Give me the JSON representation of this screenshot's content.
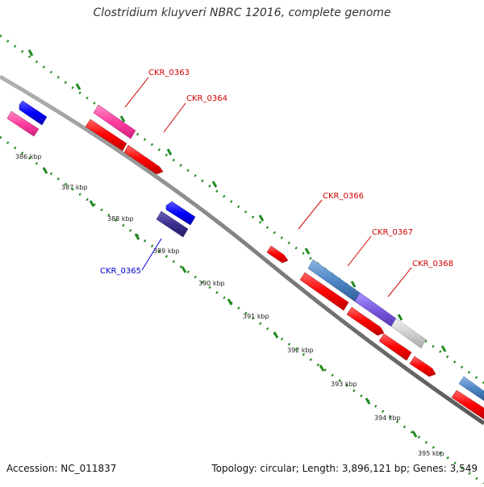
{
  "title": "Clostridium kluyveri NBRC 12016, complete genome",
  "footer": {
    "accession": "Accession: NC_011837",
    "summary": "Topology: circular; Length: 3,896,121 bp; Genes: 3,549"
  },
  "colors": {
    "backbone": "#888888",
    "tick_dots": "#1f8a1f",
    "forward_label": "#cc0000",
    "reverse_label": "#0000cc",
    "cds_red": "#ff0000",
    "cds_pink": "#ff3fa0",
    "cds_blue": "#0000ff",
    "cds_navy": "#3b2f8f",
    "cds_steel": "#4f86c6",
    "cds_violet": "#7b5be0",
    "cds_grey": "#cfcfcf"
  },
  "ticks": [
    "386 kbp",
    "387 kbp",
    "388 kbp",
    "389 kbp",
    "390 kbp",
    "391 kbp",
    "392 kbp",
    "393 kbp",
    "394 kbp",
    "395 kbp"
  ],
  "gene_labels": [
    {
      "name": "CKR_0363",
      "strand": "forward"
    },
    {
      "name": "CKR_0364",
      "strand": "forward"
    },
    {
      "name": "CKR_0365",
      "strand": "reverse"
    },
    {
      "name": "CKR_0366",
      "strand": "forward"
    },
    {
      "name": "CKR_0367",
      "strand": "forward"
    },
    {
      "name": "CKR_0368",
      "strand": "forward"
    }
  ]
}
